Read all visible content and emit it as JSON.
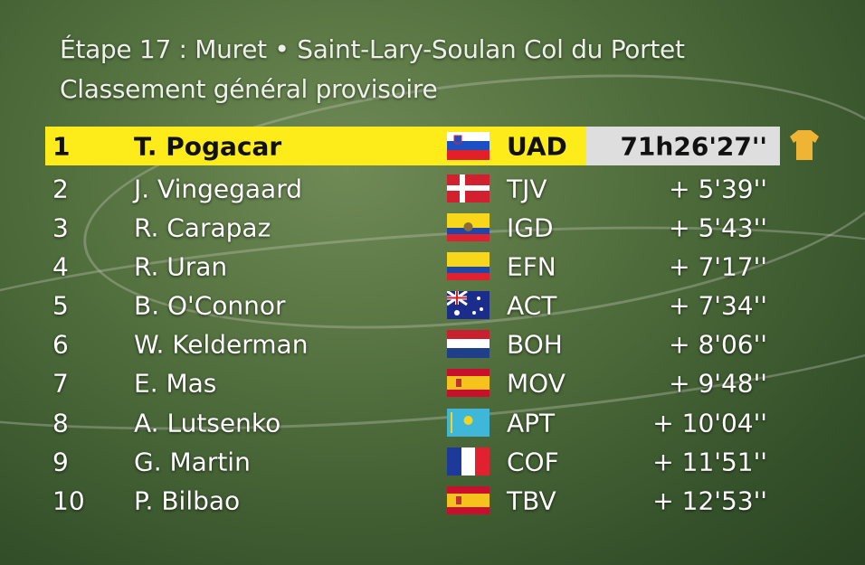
{
  "header": {
    "title": "Étape 17 : Muret • Saint-Lary-Soulan Col du Portet",
    "subtitle": "Classement général provisoire"
  },
  "table": {
    "rows": [
      [
        "1",
        "T. Pogacar",
        "UAD",
        "71h26'27''"
      ],
      [
        "2",
        "J. Vingegaard",
        "TJV",
        "+ 5'39''"
      ],
      [
        "3",
        "R. Carapaz",
        "IGD",
        "+ 5'43''"
      ],
      [
        "4",
        "R. Uran",
        "EFN",
        "+ 7'17''"
      ],
      [
        "5",
        "B. O'Connor",
        "ACT",
        "+ 7'34''"
      ],
      [
        "6",
        "W. Kelderman",
        "BOH",
        "+ 8'06''"
      ],
      [
        "7",
        "E. Mas",
        "MOV",
        "+ 9'48''"
      ],
      [
        "8",
        "A. Lutsenko",
        "APT",
        "+ 10'04''"
      ],
      [
        "9",
        "G. Martin",
        "COF",
        "+ 11'51''"
      ],
      [
        "10",
        "P. Bilbao",
        "TBV",
        "+ 12'53''"
      ]
    ]
  }
}
